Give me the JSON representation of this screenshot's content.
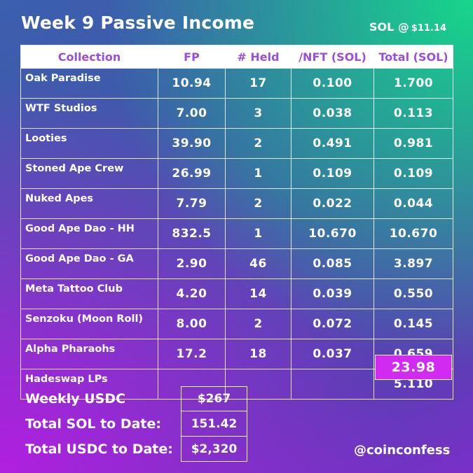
{
  "title": "Week 9 Passive Income",
  "sol_price": {
    "label": "SOL @",
    "value": "$11.14"
  },
  "table": {
    "headers": [
      "Collection",
      "FP",
      "# Held",
      "/NFT (SOL)",
      "Total (SOL)"
    ],
    "rows": [
      {
        "name": "Oak Paradise",
        "fp": "10.94",
        "held": "17",
        "per_nft": "0.100",
        "total": "1.700"
      },
      {
        "name": "WTF Studios",
        "fp": "7.00",
        "held": "3",
        "per_nft": "0.038",
        "total": "0.113"
      },
      {
        "name": "Looties",
        "fp": "39.90",
        "held": "2",
        "per_nft": "0.491",
        "total": "0.981"
      },
      {
        "name": "Stoned Ape Crew",
        "fp": "26.99",
        "held": "1",
        "per_nft": "0.109",
        "total": "0.109"
      },
      {
        "name": "Nuked Apes",
        "fp": "7.79",
        "held": "2",
        "per_nft": "0.022",
        "total": "0.044"
      },
      {
        "name": "Good Ape Dao - HH",
        "fp": "832.5",
        "held": "1",
        "per_nft": "10.670",
        "total": "10.670"
      },
      {
        "name": "Good Ape Dao - GA",
        "fp": "2.90",
        "held": "46",
        "per_nft": "0.085",
        "total": "3.897"
      },
      {
        "name": "Meta Tattoo Club",
        "fp": "4.20",
        "held": "14",
        "per_nft": "0.039",
        "total": "0.550"
      },
      {
        "name": "Senzoku (Moon Roll)",
        "fp": "8.00",
        "held": "2",
        "per_nft": "0.072",
        "total": "0.145"
      },
      {
        "name": "Alpha Pharaohs",
        "fp": "17.2",
        "held": "18",
        "per_nft": "0.037",
        "total": "0.659"
      },
      {
        "name": "Hadeswap LPs",
        "fp": "",
        "held": "",
        "per_nft": "",
        "total": "5.110"
      }
    ],
    "grand_total": "23.98"
  },
  "summary": [
    {
      "label": "Weekly USDC",
      "value": "$267"
    },
    {
      "label": "Total SOL to Date:",
      "value": "151.42"
    },
    {
      "label": "Total USDC to Date:",
      "value": "$2,320"
    }
  ],
  "handle": "@coinconfess"
}
